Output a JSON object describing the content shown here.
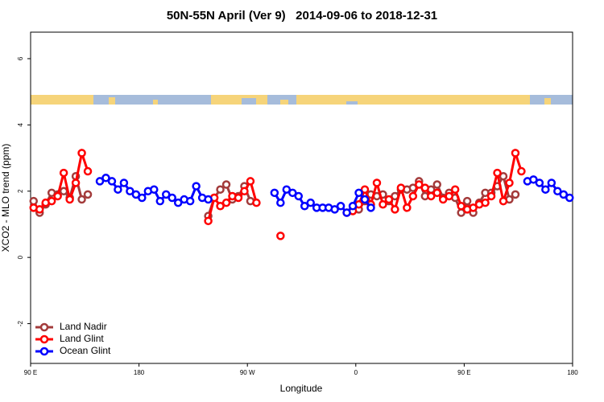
{
  "chart_data": {
    "type": "line",
    "title": "50N-55N April (Ver 9)   2014-09-06 to 2018-12-31",
    "xlabel": "Longitude",
    "ylabel": "XCO2 - MLO trend (ppm)",
    "x": [
      92.5,
      97.5,
      102.5,
      107.5,
      112.5,
      117.5,
      122.5,
      127.5,
      132.5,
      137.5,
      142.5,
      147.5,
      152.5,
      157.5,
      162.5,
      167.5,
      172.5,
      177.5,
      182.5,
      187.5,
      192.5,
      197.5,
      202.5,
      207.5,
      212.5,
      217.5,
      222.5,
      227.5,
      232.5,
      237.5,
      242.5,
      247.5,
      252.5,
      257.5,
      262.5,
      267.5,
      272.5,
      277.5,
      282.5,
      287.5,
      292.5,
      297.5,
      302.5,
      307.5,
      312.5,
      317.5,
      322.5,
      327.5,
      332.5,
      337.5,
      342.5,
      347.5,
      352.5,
      357.5,
      362.5,
      367.5,
      372.5,
      377.5,
      382.5,
      387.5,
      392.5,
      397.5,
      402.5,
      407.5,
      412.5,
      417.5,
      422.5,
      427.5,
      432.5,
      437.5,
      442.5,
      447.5,
      452.5,
      457.5,
      462.5,
      467.5,
      472.5,
      477.5,
      482.5,
      487.5,
      492.5,
      497.5,
      502.5,
      507.5,
      512.5,
      517.5,
      522.5,
      527.5,
      532.5,
      537.5
    ],
    "series": [
      {
        "name": "Land Nadir",
        "color": "#a33b3b",
        "values": [
          1.7,
          1.35,
          1.6,
          1.95,
          1.9,
          2.0,
          1.8,
          2.45,
          1.75,
          1.9,
          null,
          null,
          null,
          null,
          null,
          null,
          null,
          null,
          null,
          null,
          null,
          null,
          null,
          null,
          null,
          null,
          null,
          null,
          null,
          1.25,
          1.8,
          2.05,
          2.2,
          1.75,
          1.85,
          2.15,
          1.7,
          null,
          null,
          null,
          null,
          null,
          null,
          null,
          null,
          null,
          null,
          null,
          null,
          null,
          null,
          null,
          null,
          null,
          1.45,
          1.7,
          1.9,
          1.85,
          1.9,
          1.7,
          1.85,
          2.05,
          2.05,
          2.1,
          2.3,
          1.85,
          2.05,
          2.2,
          1.8,
          1.95,
          1.8,
          1.35,
          1.7,
          1.35,
          1.65,
          1.95,
          1.95,
          2.15,
          2.45,
          1.75,
          1.9,
          null,
          null,
          null,
          null,
          null,
          null,
          null,
          null,
          null
        ]
      },
      {
        "name": "Land Glint",
        "color": "#ff0000",
        "values": [
          1.5,
          1.45,
          1.65,
          1.7,
          1.85,
          2.55,
          1.75,
          2.25,
          3.15,
          2.6,
          null,
          null,
          null,
          null,
          null,
          null,
          null,
          null,
          null,
          null,
          null,
          null,
          null,
          null,
          null,
          null,
          null,
          null,
          null,
          1.1,
          1.8,
          1.55,
          1.65,
          1.85,
          1.8,
          2.0,
          2.3,
          1.65,
          null,
          null,
          null,
          0.65,
          null,
          null,
          null,
          null,
          null,
          null,
          null,
          null,
          null,
          null,
          1.35,
          1.4,
          1.6,
          2.05,
          1.6,
          2.25,
          1.6,
          1.75,
          1.45,
          2.1,
          1.5,
          1.85,
          2.2,
          2.1,
          1.85,
          1.95,
          1.75,
          1.85,
          2.05,
          1.55,
          1.45,
          1.5,
          1.6,
          1.65,
          1.85,
          2.55,
          1.7,
          2.25,
          3.15,
          2.6,
          null,
          null,
          null,
          null,
          null,
          null,
          null,
          null
        ]
      },
      {
        "name": "Ocean Glint",
        "color": "#0000ff",
        "values": [
          null,
          null,
          null,
          null,
          null,
          null,
          null,
          null,
          null,
          null,
          null,
          2.3,
          2.4,
          2.3,
          2.05,
          2.25,
          2.0,
          1.9,
          1.8,
          2.0,
          2.05,
          1.7,
          1.9,
          1.8,
          1.65,
          1.75,
          1.7,
          2.15,
          1.8,
          1.75,
          null,
          null,
          null,
          null,
          null,
          null,
          null,
          null,
          null,
          null,
          1.95,
          1.65,
          2.05,
          1.95,
          1.85,
          1.55,
          1.65,
          1.5,
          1.5,
          1.5,
          1.45,
          1.55,
          1.35,
          1.55,
          1.95,
          1.75,
          1.5,
          null,
          null,
          null,
          null,
          null,
          null,
          null,
          null,
          null,
          null,
          null,
          null,
          null,
          null,
          null,
          null,
          null,
          null,
          null,
          null,
          null,
          null,
          null,
          null,
          null,
          2.3,
          2.35,
          2.25,
          2.05,
          2.25,
          2.0,
          1.9,
          1.8
        ]
      }
    ],
    "xlim": [
      90,
      540
    ],
    "xticks": [
      {
        "value": 90,
        "label": "90 E"
      },
      180,
      {
        "value": 270,
        "label": "90 W"
      },
      {
        "value": 360,
        "label": "0"
      },
      {
        "value": 450,
        "label": "90 E"
      },
      {
        "value": 540,
        "label": "180"
      }
    ],
    "ylim": [
      -3.2,
      6.8
    ],
    "yticks": [
      -2,
      0,
      2,
      4,
      6
    ],
    "legend": "lower left"
  }
}
